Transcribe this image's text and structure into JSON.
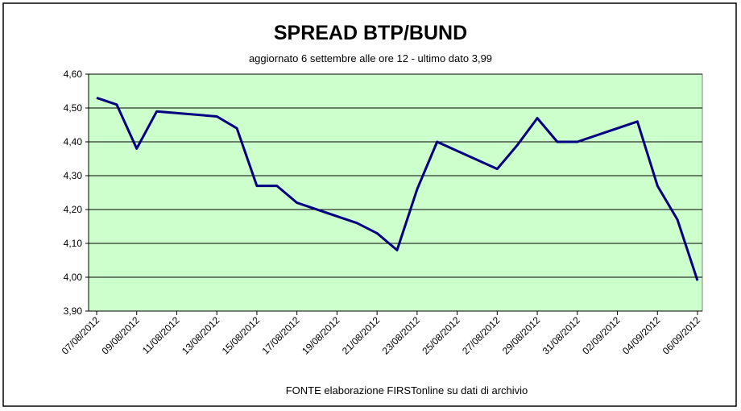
{
  "chart_data": {
    "type": "line",
    "title": "SPREAD  BTP/BUND",
    "subtitle": "aggiornato 6 settembre alle ore 12 - ultimo dato 3,99",
    "source": "FONTE elaborazione FIRSTonline su dati di archivio",
    "x": [
      "07/08/2012",
      "08/08/2012",
      "09/08/2012",
      "10/08/2012",
      "13/08/2012",
      "14/08/2012",
      "15/08/2012",
      "16/08/2012",
      "17/08/2012",
      "20/08/2012",
      "21/08/2012",
      "22/08/2012",
      "23/08/2012",
      "24/08/2012",
      "27/08/2012",
      "28/08/2012",
      "29/08/2012",
      "30/08/2012",
      "31/08/2012",
      "03/09/2012",
      "04/09/2012",
      "05/09/2012",
      "06/09/2012"
    ],
    "series": [
      {
        "name": "Spread",
        "color": "#000080",
        "values": [
          4.53,
          4.51,
          4.38,
          4.49,
          4.475,
          4.44,
          4.27,
          4.27,
          4.22,
          4.16,
          4.13,
          4.08,
          4.26,
          4.4,
          4.32,
          4.39,
          4.47,
          4.4,
          4.4,
          4.46,
          4.27,
          4.17,
          3.99
        ]
      }
    ],
    "xlim": [
      "07/08/2012",
      "06/09/2012"
    ],
    "xticks": [
      "07/08/2012",
      "09/08/2012",
      "11/08/2012",
      "13/08/2012",
      "15/08/2012",
      "17/08/2012",
      "19/08/2012",
      "21/08/2012",
      "23/08/2012",
      "25/08/2012",
      "27/08/2012",
      "29/08/2012",
      "31/08/2012",
      "02/09/2012",
      "04/09/2012",
      "06/09/2012"
    ],
    "ylim": [
      3.9,
      4.6
    ],
    "yticks": [
      {
        "value": 3.9,
        "label": "3,90"
      },
      {
        "value": 4.0,
        "label": "4,00"
      },
      {
        "value": 4.1,
        "label": "4,10"
      },
      {
        "value": 4.2,
        "label": "4,20"
      },
      {
        "value": 4.3,
        "label": "4,30"
      },
      {
        "value": 4.4,
        "label": "4,40"
      },
      {
        "value": 4.5,
        "label": "4,50"
      },
      {
        "value": 4.6,
        "label": "4,60"
      }
    ],
    "grid": true,
    "plot_background": "#ccffcc"
  }
}
